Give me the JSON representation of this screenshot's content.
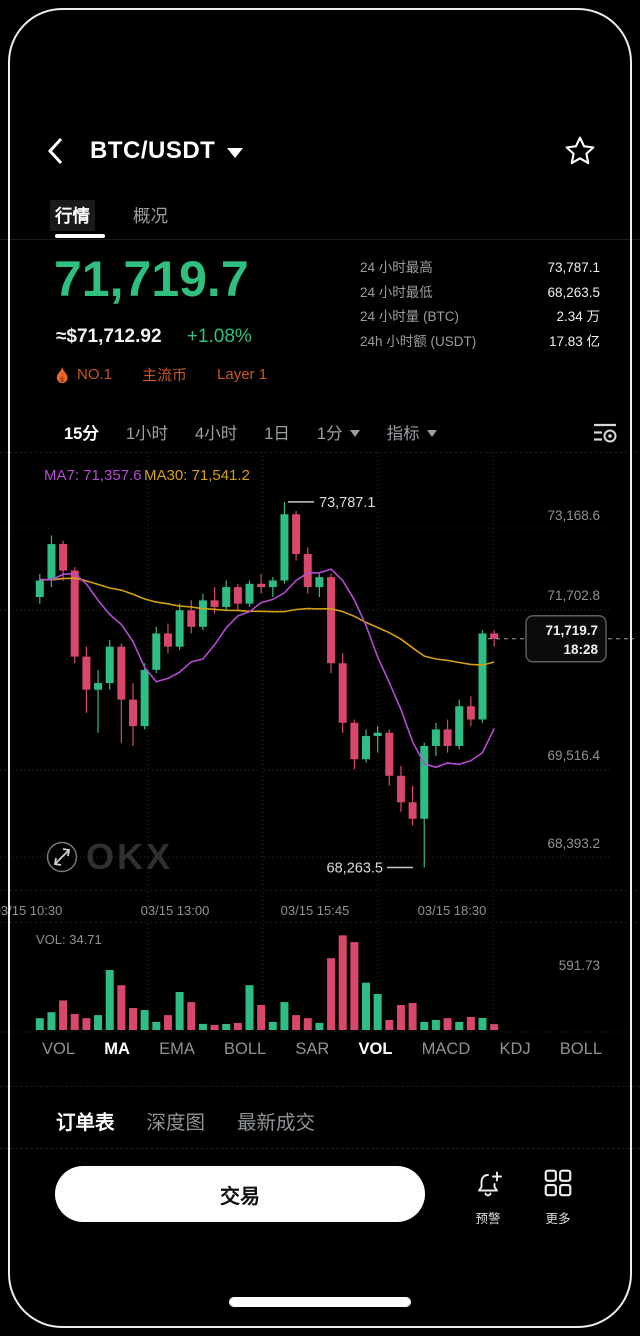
{
  "header": {
    "title": "BTC/USDT"
  },
  "tabs": {
    "items": [
      {
        "label": "行情",
        "active": true
      },
      {
        "label": "概况",
        "active": false
      }
    ]
  },
  "price": {
    "last": "71,719.7",
    "approx_usd": "≈$71,712.92",
    "change_pct": "+1.08%",
    "up_color": "#2fbf7f",
    "down_color": "#d8486a"
  },
  "badges": {
    "items": [
      "NO.1",
      "主流币",
      "Layer 1"
    ],
    "color": "#c75a1e"
  },
  "stats": [
    {
      "label": "24 小时最高",
      "value": "73,787.1"
    },
    {
      "label": "24 小时最低",
      "value": "68,263.5"
    },
    {
      "label": "24 小时量 (BTC)",
      "value": "2.34 万"
    },
    {
      "label": "24h 小时额 (USDT)",
      "value": "17.83 亿"
    }
  ],
  "intervals": {
    "items": [
      "15分",
      "1小时",
      "4小时",
      "1日",
      "1分",
      "指标"
    ],
    "active": "15分"
  },
  "chart_data": {
    "type": "candlestick",
    "interval": "15m",
    "ma_labels": [
      {
        "name": "MA7",
        "text": "MA7: 71,357.6",
        "color": "#b44bd2"
      },
      {
        "name": "MA30",
        "text": "MA30: 71,541.2",
        "color": "#d4a017"
      }
    ],
    "high_annotation": "73,787.1",
    "low_annotation": "68,263.5",
    "last_price": "71,719.7",
    "last_time": "18:28",
    "y_axis_labels": [
      "73,168.6",
      "71,702.8",
      "69,516.4",
      "68,393.2"
    ],
    "x_axis_labels": [
      "03/15 10:30",
      "03/15 13:00",
      "03/15 15:45",
      "03/15 18:30"
    ],
    "volume_current_label": "VOL: 34.71",
    "volume_axis_max": 591.73,
    "price_render_range": [
      68000,
      74450
    ],
    "colors": {
      "up": "#2ebd85",
      "down": "#d8486a",
      "ma7": "#b44bd2",
      "ma30": "#d4a017"
    },
    "watermark": "OKX",
    "candles": [
      [
        72350,
        72700,
        72250,
        72600,
        70
      ],
      [
        72600,
        73280,
        72500,
        73150,
        105
      ],
      [
        73150,
        73200,
        72600,
        72750,
        175
      ],
      [
        72750,
        72800,
        71350,
        71450,
        95
      ],
      [
        71450,
        71600,
        70600,
        70950,
        70
      ],
      [
        70950,
        71250,
        70300,
        71050,
        88
      ],
      [
        71050,
        71700,
        70950,
        71600,
        355
      ],
      [
        71600,
        71650,
        70150,
        70800,
        265
      ],
      [
        70800,
        71050,
        70100,
        70400,
        130
      ],
      [
        70400,
        71350,
        70350,
        71250,
        118
      ],
      [
        71250,
        71900,
        71200,
        71800,
        48
      ],
      [
        71800,
        71950,
        71500,
        71600,
        88
      ],
      [
        71600,
        72250,
        71550,
        72150,
        225
      ],
      [
        72150,
        72300,
        71800,
        71900,
        165
      ],
      [
        71900,
        72400,
        71850,
        72300,
        36
      ],
      [
        72300,
        72500,
        72100,
        72200,
        30
      ],
      [
        72200,
        72600,
        72150,
        72500,
        36
      ],
      [
        72500,
        72550,
        72150,
        72250,
        42
      ],
      [
        72250,
        72600,
        72200,
        72550,
        265
      ],
      [
        72550,
        72700,
        72400,
        72500,
        148
      ],
      [
        72500,
        72650,
        72350,
        72600,
        48
      ],
      [
        72600,
        73787.1,
        72550,
        73600,
        165
      ],
      [
        73600,
        73650,
        72900,
        73000,
        88
      ],
      [
        73000,
        73100,
        72400,
        72500,
        70
      ],
      [
        72500,
        72700,
        72350,
        72650,
        42
      ],
      [
        72650,
        72700,
        71200,
        71350,
        425
      ],
      [
        71350,
        71500,
        70300,
        70450,
        560
      ],
      [
        70450,
        70500,
        69750,
        69900,
        520
      ],
      [
        69900,
        70350,
        69850,
        70250,
        280
      ],
      [
        70250,
        70400,
        70000,
        70300,
        213
      ],
      [
        70300,
        70350,
        69500,
        69650,
        59
      ],
      [
        69650,
        69800,
        69100,
        69250,
        148
      ],
      [
        69250,
        69500,
        68900,
        69000,
        160
      ],
      [
        69000,
        70150,
        68263.5,
        70100,
        48
      ],
      [
        70100,
        70450,
        69950,
        70350,
        59
      ],
      [
        70350,
        70500,
        70000,
        70100,
        70
      ],
      [
        70100,
        70800,
        70050,
        70700,
        48
      ],
      [
        70700,
        70850,
        70400,
        70500,
        77
      ],
      [
        70500,
        71850,
        70450,
        71800,
        71
      ],
      [
        71800,
        71850,
        71600,
        71719.7,
        34.71
      ]
    ]
  },
  "indicators": [
    {
      "label": "VOL",
      "active": false
    },
    {
      "label": "MA",
      "active": true
    },
    {
      "label": "EMA",
      "active": false
    },
    {
      "label": "BOLL",
      "active": false
    },
    {
      "label": "SAR",
      "active": false
    },
    {
      "label": "VOL",
      "active": true
    },
    {
      "label": "MACD",
      "active": false
    },
    {
      "label": "KDJ",
      "active": false
    },
    {
      "label": "BOLL",
      "active": false
    }
  ],
  "bottom_tabs": [
    {
      "label": "订单表",
      "active": true
    },
    {
      "label": "深度图",
      "active": false
    },
    {
      "label": "最新成交",
      "active": false
    }
  ],
  "bottom_bar": {
    "trade_label": "交易",
    "alert_label": "预警",
    "more_label": "更多"
  }
}
